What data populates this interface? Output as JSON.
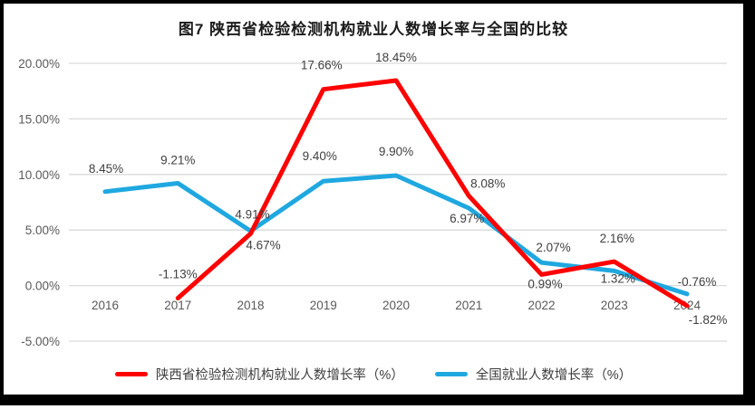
{
  "title": "图7 陕西省检验检测机构就业人数增长率与全国的比较",
  "chart_data": {
    "type": "line",
    "categories": [
      "2016",
      "2017",
      "2018",
      "2019",
      "2020",
      "2021",
      "2022",
      "2023",
      "2024"
    ],
    "series": [
      {
        "name": "陕西省检验检测机构就业人数增长率（%）",
        "color": "#ff0000",
        "values": [
          null,
          -1.13,
          4.67,
          17.66,
          18.45,
          8.08,
          0.99,
          2.16,
          -1.82
        ],
        "labels": [
          "",
          "-1.13%",
          "4.67%",
          "17.66%",
          "18.45%",
          "8.08%",
          "0.99%",
          "2.16%",
          "-1.82%"
        ],
        "label_offsets": [
          [
            0,
            0
          ],
          [
            0,
            -27
          ],
          [
            14,
            12
          ],
          [
            -2,
            -27
          ],
          [
            0,
            -26
          ],
          [
            21,
            -14
          ],
          [
            4,
            10
          ],
          [
            3,
            -26
          ],
          [
            23,
            15
          ]
        ]
      },
      {
        "name": "全国就业人数增长率（%）",
        "color": "#1fa8e0",
        "values": [
          8.45,
          9.21,
          4.91,
          9.4,
          9.9,
          6.97,
          2.07,
          1.32,
          -0.76
        ],
        "labels": [
          "8.45%",
          "9.21%",
          "4.91%",
          "9.40%",
          "9.90%",
          "6.97%",
          "2.07%",
          "1.32%",
          "-0.76%"
        ],
        "label_offsets": [
          [
            1,
            -26
          ],
          [
            0,
            -26
          ],
          [
            2,
            -19
          ],
          [
            -4,
            -28
          ],
          [
            0,
            -27
          ],
          [
            -2,
            11
          ],
          [
            13,
            -17
          ],
          [
            4,
            8
          ],
          [
            11,
            -14
          ]
        ]
      }
    ],
    "y_axis": {
      "ticks": [
        "20.00%",
        "15.00%",
        "10.00%",
        "5.00%",
        "0.00%",
        "-5.00%"
      ],
      "tick_values": [
        20,
        15,
        10,
        5,
        0,
        -5
      ],
      "min": -5,
      "max": 20
    },
    "grid": true,
    "grid_color": "#d9d9d9",
    "legend_position": "bottom"
  }
}
